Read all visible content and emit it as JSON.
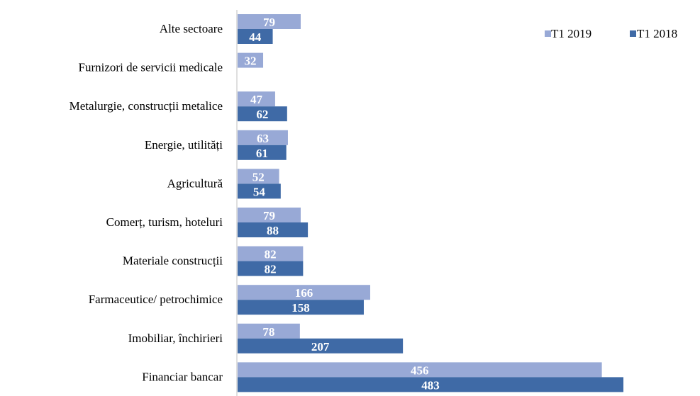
{
  "chart_data": {
    "type": "bar",
    "orientation": "horizontal",
    "categories": [
      "Alte sectoare",
      "Furnizori de servicii medicale",
      "Metalurgie,  construcții metalice",
      "Energie,  utilități",
      "Agricultură",
      "Comerț, turism, hoteluri",
      "Materiale  construcții",
      "Farmaceutice/  petrochimice",
      "Imobiliar, închirieri",
      "Financiar bancar"
    ],
    "series": [
      {
        "name": "T1 2019",
        "color": "#98A9D6",
        "values": [
          79,
          32,
          47,
          63,
          52,
          79,
          82,
          166,
          78,
          456
        ]
      },
      {
        "name": "T1 2018",
        "color": "#3F6AA6",
        "values": [
          44,
          null,
          62,
          61,
          54,
          88,
          82,
          158,
          207,
          483
        ]
      }
    ],
    "value_labels": {
      "T1 2019": [
        "79",
        "32",
        "47",
        "63",
        "52",
        "79",
        "82",
        "166",
        "78",
        "456"
      ],
      "T1 2018": [
        "44",
        "",
        "62",
        "61",
        "54",
        "88",
        "82",
        "158",
        "207",
        "483"
      ]
    },
    "xlim": [
      0,
      500
    ],
    "grid": false,
    "legend_position": "top-right",
    "data_labels": "inside-bar"
  }
}
